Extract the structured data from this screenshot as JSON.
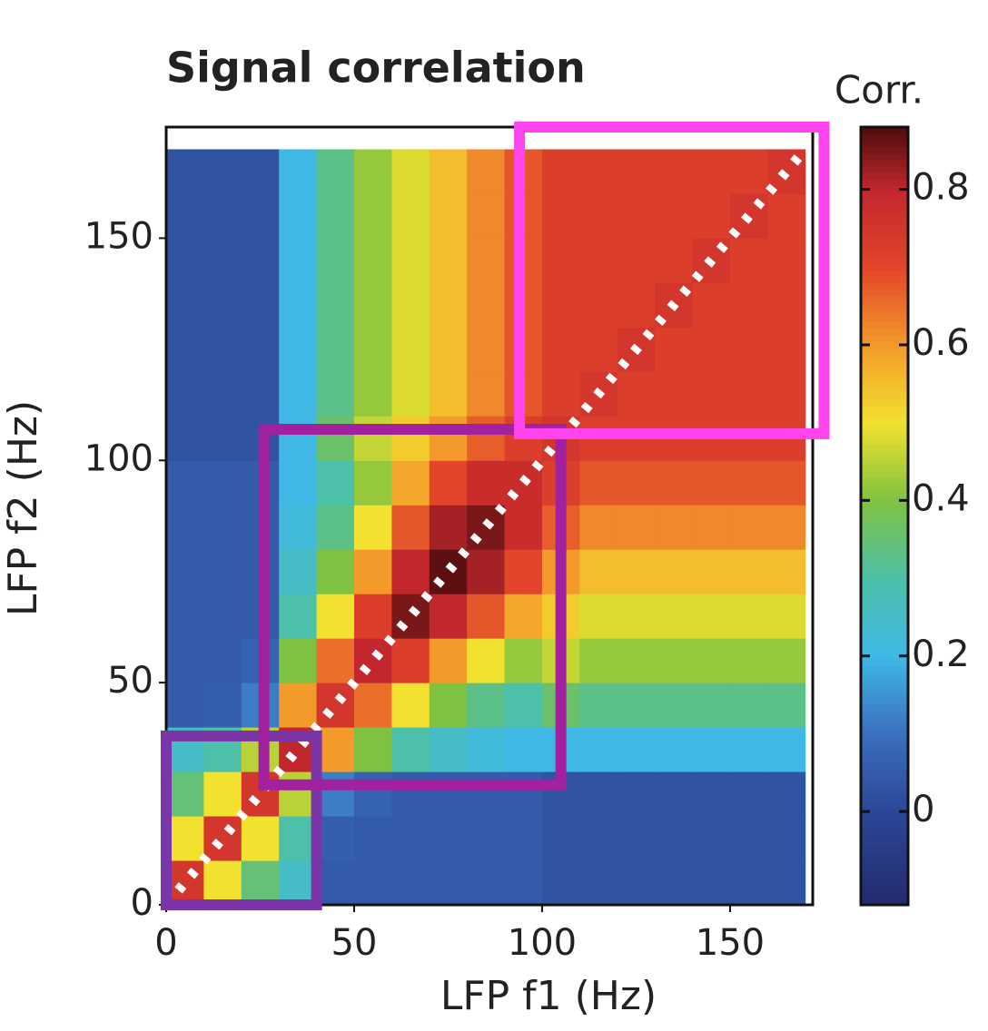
{
  "chart_data": {
    "type": "heatmap",
    "title": "Signal correlation",
    "xlabel": "LFP f1 (Hz)",
    "ylabel": "LFP f2 (Hz)",
    "colorbar_label": "Corr.",
    "x": [
      5,
      15,
      25,
      35,
      45,
      55,
      65,
      75,
      85,
      95,
      105,
      115,
      125,
      135,
      145,
      155,
      165
    ],
    "y": [
      5,
      15,
      25,
      35,
      45,
      55,
      65,
      75,
      85,
      95,
      105,
      115,
      125,
      135,
      145,
      155,
      165
    ],
    "bin_width": 10,
    "values": [
      [
        0.75,
        0.5,
        0.35,
        0.25,
        0.05,
        0.05,
        0.05,
        0.05,
        0.05,
        0.05,
        0.03,
        0.03,
        0.03,
        0.03,
        0.03,
        0.03,
        0.03
      ],
      [
        0.5,
        0.75,
        0.5,
        0.3,
        0.06,
        0.05,
        0.05,
        0.05,
        0.05,
        0.05,
        0.03,
        0.03,
        0.03,
        0.03,
        0.03,
        0.03,
        0.03
      ],
      [
        0.35,
        0.5,
        0.75,
        0.45,
        0.12,
        0.07,
        0.05,
        0.05,
        0.05,
        0.05,
        0.03,
        0.03,
        0.03,
        0.03,
        0.03,
        0.03,
        0.03
      ],
      [
        0.25,
        0.3,
        0.45,
        0.8,
        0.6,
        0.4,
        0.3,
        0.25,
        0.22,
        0.2,
        0.2,
        0.2,
        0.2,
        0.2,
        0.2,
        0.2,
        0.2
      ],
      [
        0.05,
        0.06,
        0.12,
        0.6,
        0.75,
        0.65,
        0.5,
        0.4,
        0.33,
        0.3,
        0.36,
        0.33,
        0.33,
        0.33,
        0.33,
        0.33,
        0.33
      ],
      [
        0.05,
        0.05,
        0.07,
        0.4,
        0.65,
        0.8,
        0.72,
        0.6,
        0.5,
        0.42,
        0.46,
        0.42,
        0.42,
        0.42,
        0.42,
        0.42,
        0.42
      ],
      [
        0.05,
        0.05,
        0.05,
        0.3,
        0.5,
        0.72,
        0.85,
        0.8,
        0.68,
        0.58,
        0.53,
        0.48,
        0.48,
        0.48,
        0.48,
        0.48,
        0.48
      ],
      [
        0.05,
        0.05,
        0.05,
        0.25,
        0.4,
        0.6,
        0.8,
        0.87,
        0.82,
        0.7,
        0.6,
        0.55,
        0.55,
        0.55,
        0.55,
        0.55,
        0.55
      ],
      [
        0.05,
        0.05,
        0.05,
        0.22,
        0.33,
        0.5,
        0.68,
        0.82,
        0.85,
        0.78,
        0.67,
        0.62,
        0.62,
        0.62,
        0.62,
        0.62,
        0.62
      ],
      [
        0.05,
        0.05,
        0.05,
        0.2,
        0.3,
        0.42,
        0.58,
        0.7,
        0.78,
        0.78,
        0.72,
        0.68,
        0.68,
        0.68,
        0.68,
        0.68,
        0.68
      ],
      [
        0.03,
        0.03,
        0.03,
        0.2,
        0.36,
        0.46,
        0.53,
        0.6,
        0.67,
        0.72,
        0.75,
        0.72,
        0.72,
        0.72,
        0.72,
        0.72,
        0.72
      ],
      [
        0.03,
        0.03,
        0.03,
        0.2,
        0.33,
        0.42,
        0.48,
        0.55,
        0.62,
        0.68,
        0.72,
        0.75,
        0.72,
        0.72,
        0.72,
        0.72,
        0.72
      ],
      [
        0.03,
        0.03,
        0.03,
        0.2,
        0.33,
        0.42,
        0.48,
        0.55,
        0.62,
        0.68,
        0.72,
        0.72,
        0.75,
        0.72,
        0.72,
        0.72,
        0.72
      ],
      [
        0.03,
        0.03,
        0.03,
        0.2,
        0.33,
        0.42,
        0.48,
        0.55,
        0.62,
        0.68,
        0.72,
        0.72,
        0.72,
        0.75,
        0.72,
        0.72,
        0.72
      ],
      [
        0.03,
        0.03,
        0.03,
        0.2,
        0.33,
        0.42,
        0.48,
        0.55,
        0.62,
        0.68,
        0.72,
        0.72,
        0.72,
        0.72,
        0.75,
        0.72,
        0.72
      ],
      [
        0.03,
        0.03,
        0.03,
        0.2,
        0.33,
        0.42,
        0.48,
        0.55,
        0.62,
        0.68,
        0.72,
        0.72,
        0.72,
        0.72,
        0.72,
        0.75,
        0.72
      ],
      [
        0.03,
        0.03,
        0.03,
        0.2,
        0.33,
        0.42,
        0.48,
        0.55,
        0.62,
        0.68,
        0.72,
        0.72,
        0.72,
        0.72,
        0.72,
        0.72,
        0.75
      ]
    ],
    "xlim": [
      0,
      172
    ],
    "ylim": [
      0,
      175
    ],
    "xticks": [
      0,
      50,
      100,
      150
    ],
    "yticks": [
      0,
      50,
      100,
      150
    ],
    "clim": [
      -0.12,
      0.88
    ],
    "cticks": [
      0,
      0.2,
      0.4,
      0.6,
      0.8
    ],
    "colormap": [
      {
        "value": -0.12,
        "color": "#232a6e"
      },
      {
        "value": 0.0,
        "color": "#2c4796"
      },
      {
        "value": 0.1,
        "color": "#3a6fbd"
      },
      {
        "value": 0.2,
        "color": "#3fb8e6"
      },
      {
        "value": 0.3,
        "color": "#4cc0a8"
      },
      {
        "value": 0.4,
        "color": "#7fc241"
      },
      {
        "value": 0.5,
        "color": "#f2e12e"
      },
      {
        "value": 0.6,
        "color": "#f39a2b"
      },
      {
        "value": 0.7,
        "color": "#e2452a"
      },
      {
        "value": 0.8,
        "color": "#c1272d"
      },
      {
        "value": 0.88,
        "color": "#4e0d0d"
      }
    ],
    "highlight_boxes": [
      {
        "x": [
          0,
          40
        ],
        "y": [
          0,
          38
        ],
        "color": "#7a36a8"
      },
      {
        "x": [
          26,
          105
        ],
        "y": [
          27,
          107
        ],
        "color": "#a1219e"
      },
      {
        "x": [
          94,
          175
        ],
        "y": [
          106,
          175
        ],
        "color": "#ff44ee"
      }
    ]
  }
}
